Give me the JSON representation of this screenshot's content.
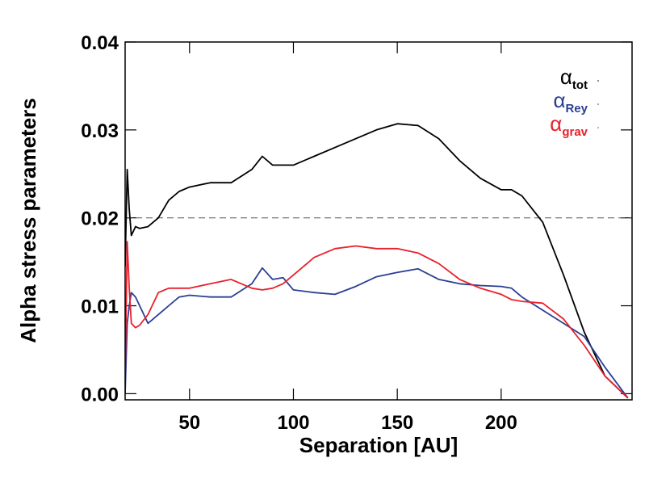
{
  "chart_data": {
    "type": "line",
    "xlabel": "Separation [AU]",
    "ylabel": "Alpha stress parameters",
    "x": [
      19,
      20,
      21,
      22,
      24,
      26,
      30,
      35,
      40,
      45,
      50,
      60,
      70,
      80,
      85,
      90,
      95,
      100,
      110,
      120,
      130,
      140,
      150,
      160,
      170,
      180,
      190,
      200,
      205,
      210,
      220,
      230,
      240,
      250,
      261
    ],
    "series": [
      {
        "name": "α",
        "subscript": "tot",
        "color": "#000000",
        "values": [
          0.0145,
          0.0255,
          0.021,
          0.018,
          0.019,
          0.0188,
          0.019,
          0.02,
          0.022,
          0.023,
          0.0235,
          0.024,
          0.024,
          0.0255,
          0.027,
          0.026,
          0.026,
          0.026,
          0.027,
          0.028,
          0.029,
          0.03,
          0.0307,
          0.0305,
          0.029,
          0.0265,
          0.0245,
          0.0232,
          0.0232,
          0.0225,
          0.0195,
          0.0135,
          0.007,
          0.002,
          -0.0005
        ]
      },
      {
        "name": "α",
        "subscript": "Rey",
        "color": "#2a3f94",
        "values": [
          0.0,
          0.008,
          0.01,
          0.0115,
          0.011,
          0.01,
          0.008,
          0.009,
          0.01,
          0.011,
          0.0112,
          0.011,
          0.011,
          0.0125,
          0.0143,
          0.013,
          0.0132,
          0.0118,
          0.0115,
          0.0113,
          0.0122,
          0.0133,
          0.0138,
          0.0142,
          0.013,
          0.0125,
          0.0123,
          0.0122,
          0.012,
          0.011,
          0.0095,
          0.008,
          0.0065,
          0.003,
          -0.0005
        ]
      },
      {
        "name": "α",
        "subscript": "grav",
        "color": "#e8202a",
        "values": [
          0.002,
          0.0173,
          0.012,
          0.008,
          0.0075,
          0.0078,
          0.009,
          0.0115,
          0.012,
          0.012,
          0.012,
          0.0125,
          0.013,
          0.012,
          0.0118,
          0.012,
          0.0125,
          0.0135,
          0.0155,
          0.0165,
          0.0168,
          0.0165,
          0.0165,
          0.016,
          0.0148,
          0.013,
          0.012,
          0.0113,
          0.0107,
          0.0105,
          0.0103,
          0.0085,
          0.0055,
          0.002,
          -0.0005
        ]
      }
    ],
    "hline": 0.02,
    "xlim": [
      19,
      263
    ],
    "ylim": [
      -0.0007,
      0.04
    ],
    "xticks": [
      50,
      100,
      150,
      200
    ],
    "yticks": [
      {
        "value": 0,
        "label": "0.00"
      },
      {
        "value": 0.01,
        "label": "0.01"
      },
      {
        "value": 0.02,
        "label": "0.02"
      },
      {
        "value": 0.03,
        "label": "0.03"
      },
      {
        "value": 0.04,
        "label": "0.04"
      }
    ],
    "legend": "upper right"
  }
}
